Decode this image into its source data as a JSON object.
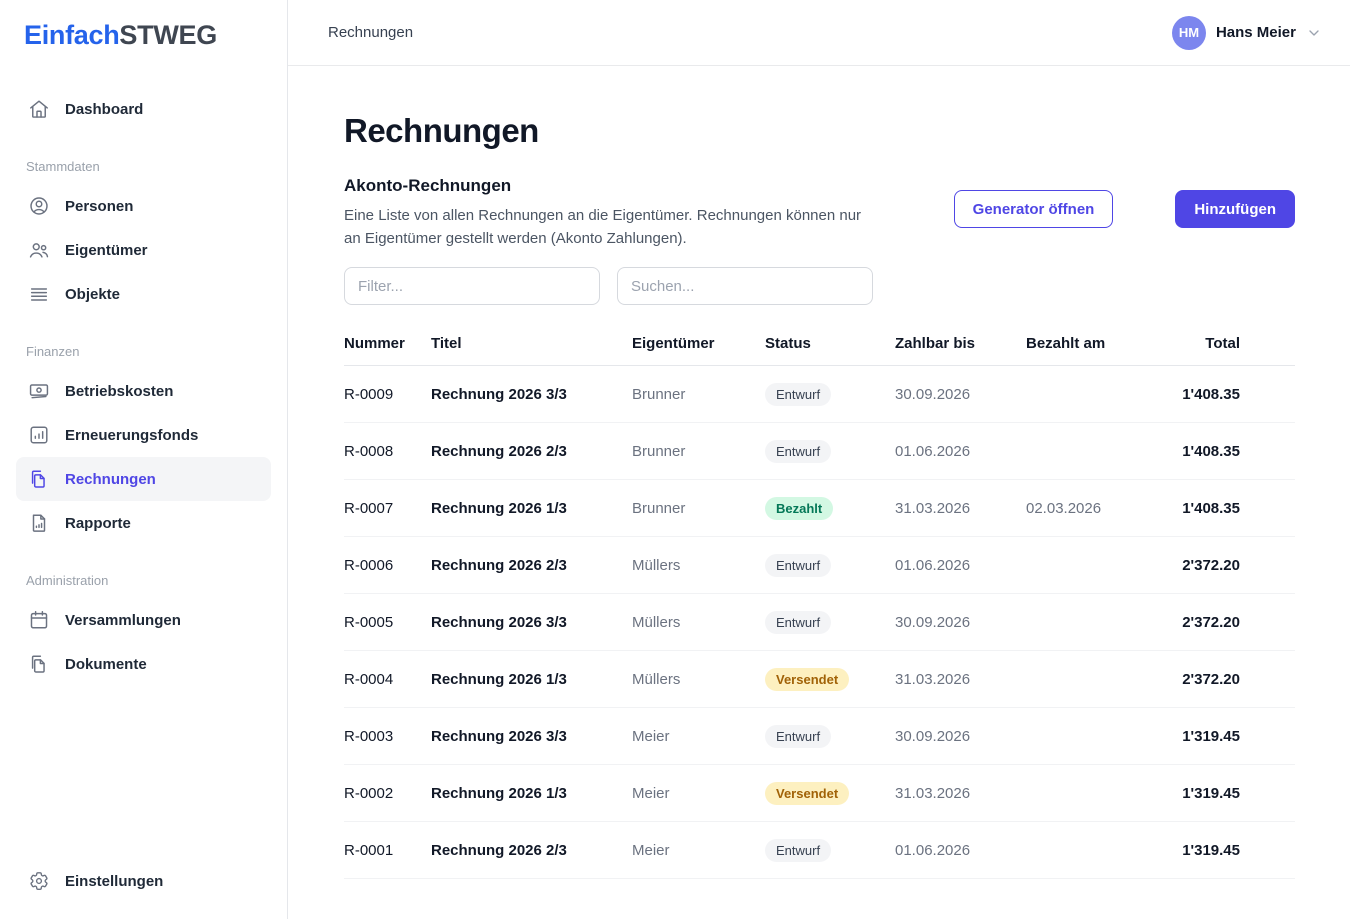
{
  "brand": {
    "name_primary": "Einfach",
    "name_secondary": "STWEG"
  },
  "topbar": {
    "breadcrumb": "Rechnungen",
    "user": {
      "initials": "HM",
      "name": "Hans Meier"
    }
  },
  "sidebar": {
    "sections": [
      {
        "label": "",
        "items": [
          {
            "id": "dashboard",
            "label": "Dashboard",
            "icon": "home-icon",
            "active": false
          }
        ]
      },
      {
        "label": "Stammdaten",
        "items": [
          {
            "id": "personen",
            "label": "Personen",
            "icon": "user-circle-icon",
            "active": false
          },
          {
            "id": "eigentuemer",
            "label": "Eigentümer",
            "icon": "users-icon",
            "active": false
          },
          {
            "id": "objekte",
            "label": "Objekte",
            "icon": "list-icon",
            "active": false
          }
        ]
      },
      {
        "label": "Finanzen",
        "items": [
          {
            "id": "betriebskosten",
            "label": "Betriebskosten",
            "icon": "banknote-icon",
            "active": false
          },
          {
            "id": "erneuerungsfonds",
            "label": "Erneuerungsfonds",
            "icon": "chart-square-icon",
            "active": false
          },
          {
            "id": "rechnungen",
            "label": "Rechnungen",
            "icon": "documents-icon",
            "active": true
          },
          {
            "id": "rapporte",
            "label": "Rapporte",
            "icon": "document-chart-icon",
            "active": false
          }
        ]
      },
      {
        "label": "Administration",
        "items": [
          {
            "id": "versammlungen",
            "label": "Versammlungen",
            "icon": "calendar-icon",
            "active": false
          },
          {
            "id": "dokumente",
            "label": "Dokumente",
            "icon": "documents-icon",
            "active": false
          }
        ]
      }
    ],
    "footer_item": {
      "id": "einstellungen",
      "label": "Einstellungen",
      "icon": "gear-icon",
      "active": false
    }
  },
  "page": {
    "title": "Rechnungen",
    "section_title": "Akonto-Rechnungen",
    "description": "Eine Liste von allen Rechnungen an die Eigentümer. Rechnungen können nur an Eigentümer gestellt werden (Akonto Zahlungen).",
    "buttons": {
      "generator": "Generator öffnen",
      "add": "Hinzufügen"
    },
    "filters": {
      "filter_placeholder": "Filter...",
      "search_placeholder": "Suchen..."
    }
  },
  "table": {
    "columns": [
      "Nummer",
      "Titel",
      "Eigentümer",
      "Status",
      "Zahlbar bis",
      "Bezahlt am",
      "Total"
    ],
    "rows": [
      {
        "nummer": "R-0009",
        "titel": "Rechnung 2026 3/3",
        "eigentuemer": "Brunner",
        "status": "Entwurf",
        "status_type": "draft",
        "zahlbar_bis": "30.09.2026",
        "bezahlt_am": "",
        "total": "1'408.35"
      },
      {
        "nummer": "R-0008",
        "titel": "Rechnung 2026 2/3",
        "eigentuemer": "Brunner",
        "status": "Entwurf",
        "status_type": "draft",
        "zahlbar_bis": "01.06.2026",
        "bezahlt_am": "",
        "total": "1'408.35"
      },
      {
        "nummer": "R-0007",
        "titel": "Rechnung 2026 1/3",
        "eigentuemer": "Brunner",
        "status": "Bezahlt",
        "status_type": "paid",
        "zahlbar_bis": "31.03.2026",
        "bezahlt_am": "02.03.2026",
        "total": "1'408.35"
      },
      {
        "nummer": "R-0006",
        "titel": "Rechnung 2026 2/3",
        "eigentuemer": "Müllers",
        "status": "Entwurf",
        "status_type": "draft",
        "zahlbar_bis": "01.06.2026",
        "bezahlt_am": "",
        "total": "2'372.20"
      },
      {
        "nummer": "R-0005",
        "titel": "Rechnung 2026 3/3",
        "eigentuemer": "Müllers",
        "status": "Entwurf",
        "status_type": "draft",
        "zahlbar_bis": "30.09.2026",
        "bezahlt_am": "",
        "total": "2'372.20"
      },
      {
        "nummer": "R-0004",
        "titel": "Rechnung 2026 1/3",
        "eigentuemer": "Müllers",
        "status": "Versendet",
        "status_type": "sent",
        "zahlbar_bis": "31.03.2026",
        "bezahlt_am": "",
        "total": "2'372.20"
      },
      {
        "nummer": "R-0003",
        "titel": "Rechnung 2026 3/3",
        "eigentuemer": "Meier",
        "status": "Entwurf",
        "status_type": "draft",
        "zahlbar_bis": "30.09.2026",
        "bezahlt_am": "",
        "total": "1'319.45"
      },
      {
        "nummer": "R-0002",
        "titel": "Rechnung 2026 1/3",
        "eigentuemer": "Meier",
        "status": "Versendet",
        "status_type": "sent",
        "zahlbar_bis": "31.03.2026",
        "bezahlt_am": "",
        "total": "1'319.45"
      },
      {
        "nummer": "R-0001",
        "titel": "Rechnung 2026 2/3",
        "eigentuemer": "Meier",
        "status": "Entwurf",
        "status_type": "draft",
        "zahlbar_bis": "01.06.2026",
        "bezahlt_am": "",
        "total": "1'319.45"
      }
    ]
  },
  "colors": {
    "primary": "#4f46e5",
    "logo_blue": "#2563eb",
    "logo_dark": "#3f4651",
    "avatar_bg": "#7c86ee",
    "badge_draft_bg": "#f3f4f6",
    "badge_draft_text": "#374151",
    "badge_paid_bg": "#d3f8e3",
    "badge_paid_text": "#047857",
    "badge_sent_bg": "#fdf0c0",
    "badge_sent_text": "#a16207"
  }
}
